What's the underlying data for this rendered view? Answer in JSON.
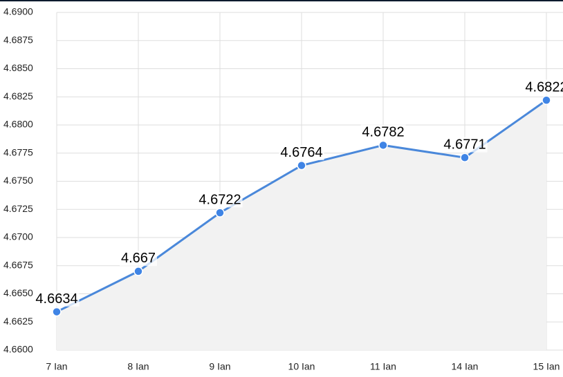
{
  "chart_data": {
    "type": "line",
    "categories": [
      "7 Ian",
      "8 Ian",
      "9 Ian",
      "10 Ian",
      "11 Ian",
      "14 Ian",
      "15 Ian"
    ],
    "values": [
      4.6634,
      4.667,
      4.6722,
      4.6764,
      4.6782,
      4.6771,
      4.6822
    ],
    "color": "#4a88da",
    "area_color": "#f2f2f2",
    "ylim": [
      4.66,
      4.69
    ],
    "yticks": [
      {
        "value": 4.66,
        "label": "4.6600"
      },
      4.6625,
      {
        "value": 4.665,
        "label": "4.6650"
      },
      4.6675,
      {
        "value": 4.67,
        "label": "4.6700"
      },
      4.6725,
      {
        "value": 4.675,
        "label": "4.6750"
      },
      4.6775,
      {
        "value": 4.68,
        "label": "4.6800"
      },
      4.6825,
      {
        "value": 4.685,
        "label": "4.6850"
      },
      4.6875,
      {
        "value": 4.69,
        "label": "4.6900"
      }
    ],
    "grid": true
  }
}
